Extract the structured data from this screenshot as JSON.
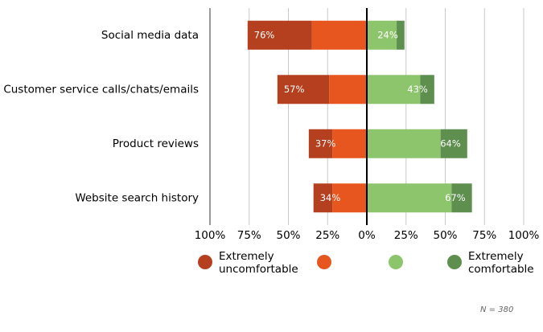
{
  "chart_data": {
    "type": "diverging_stacked_bar",
    "categories": [
      "Social media data",
      "Customer service calls/chats/emails",
      "Product reviews",
      "Website search history"
    ],
    "series": [
      {
        "name": "Extremely uncomfortable",
        "color": "#b5401f",
        "values": [
          -41,
          -33,
          -15,
          -12
        ]
      },
      {
        "name": null,
        "color": "#e8561f",
        "values": [
          -35,
          -24,
          -22,
          -22
        ]
      },
      {
        "name": null,
        "color": "#8dc56c",
        "values": [
          19,
          34,
          47,
          54
        ]
      },
      {
        "name": "Extremely comfortable",
        "color": "#5e8f4f",
        "values": [
          5,
          9,
          17,
          13
        ]
      }
    ],
    "totals": {
      "left": {
        "values": [
          -76,
          -57,
          -37,
          -34
        ],
        "value_labels": [
          "76%",
          "57%",
          "37%",
          "34%"
        ]
      },
      "right": {
        "values": [
          24,
          43,
          64,
          67
        ],
        "value_labels": [
          "24%",
          "43%",
          "64%",
          "67%"
        ]
      }
    },
    "xlim": [
      -100,
      100
    ],
    "xticks": [
      {
        "value": -100,
        "label": "100%"
      },
      {
        "value": -75,
        "label": "75%"
      },
      {
        "value": -50,
        "label": "50%"
      },
      {
        "value": -25,
        "label": "25%"
      },
      {
        "value": 0,
        "label": "0%"
      },
      {
        "value": 25,
        "label": "25%"
      },
      {
        "value": 50,
        "label": "50%"
      },
      {
        "value": 75,
        "label": "75%"
      },
      {
        "value": 100,
        "label": "100%"
      }
    ],
    "grid": true,
    "note": "N = 380"
  }
}
